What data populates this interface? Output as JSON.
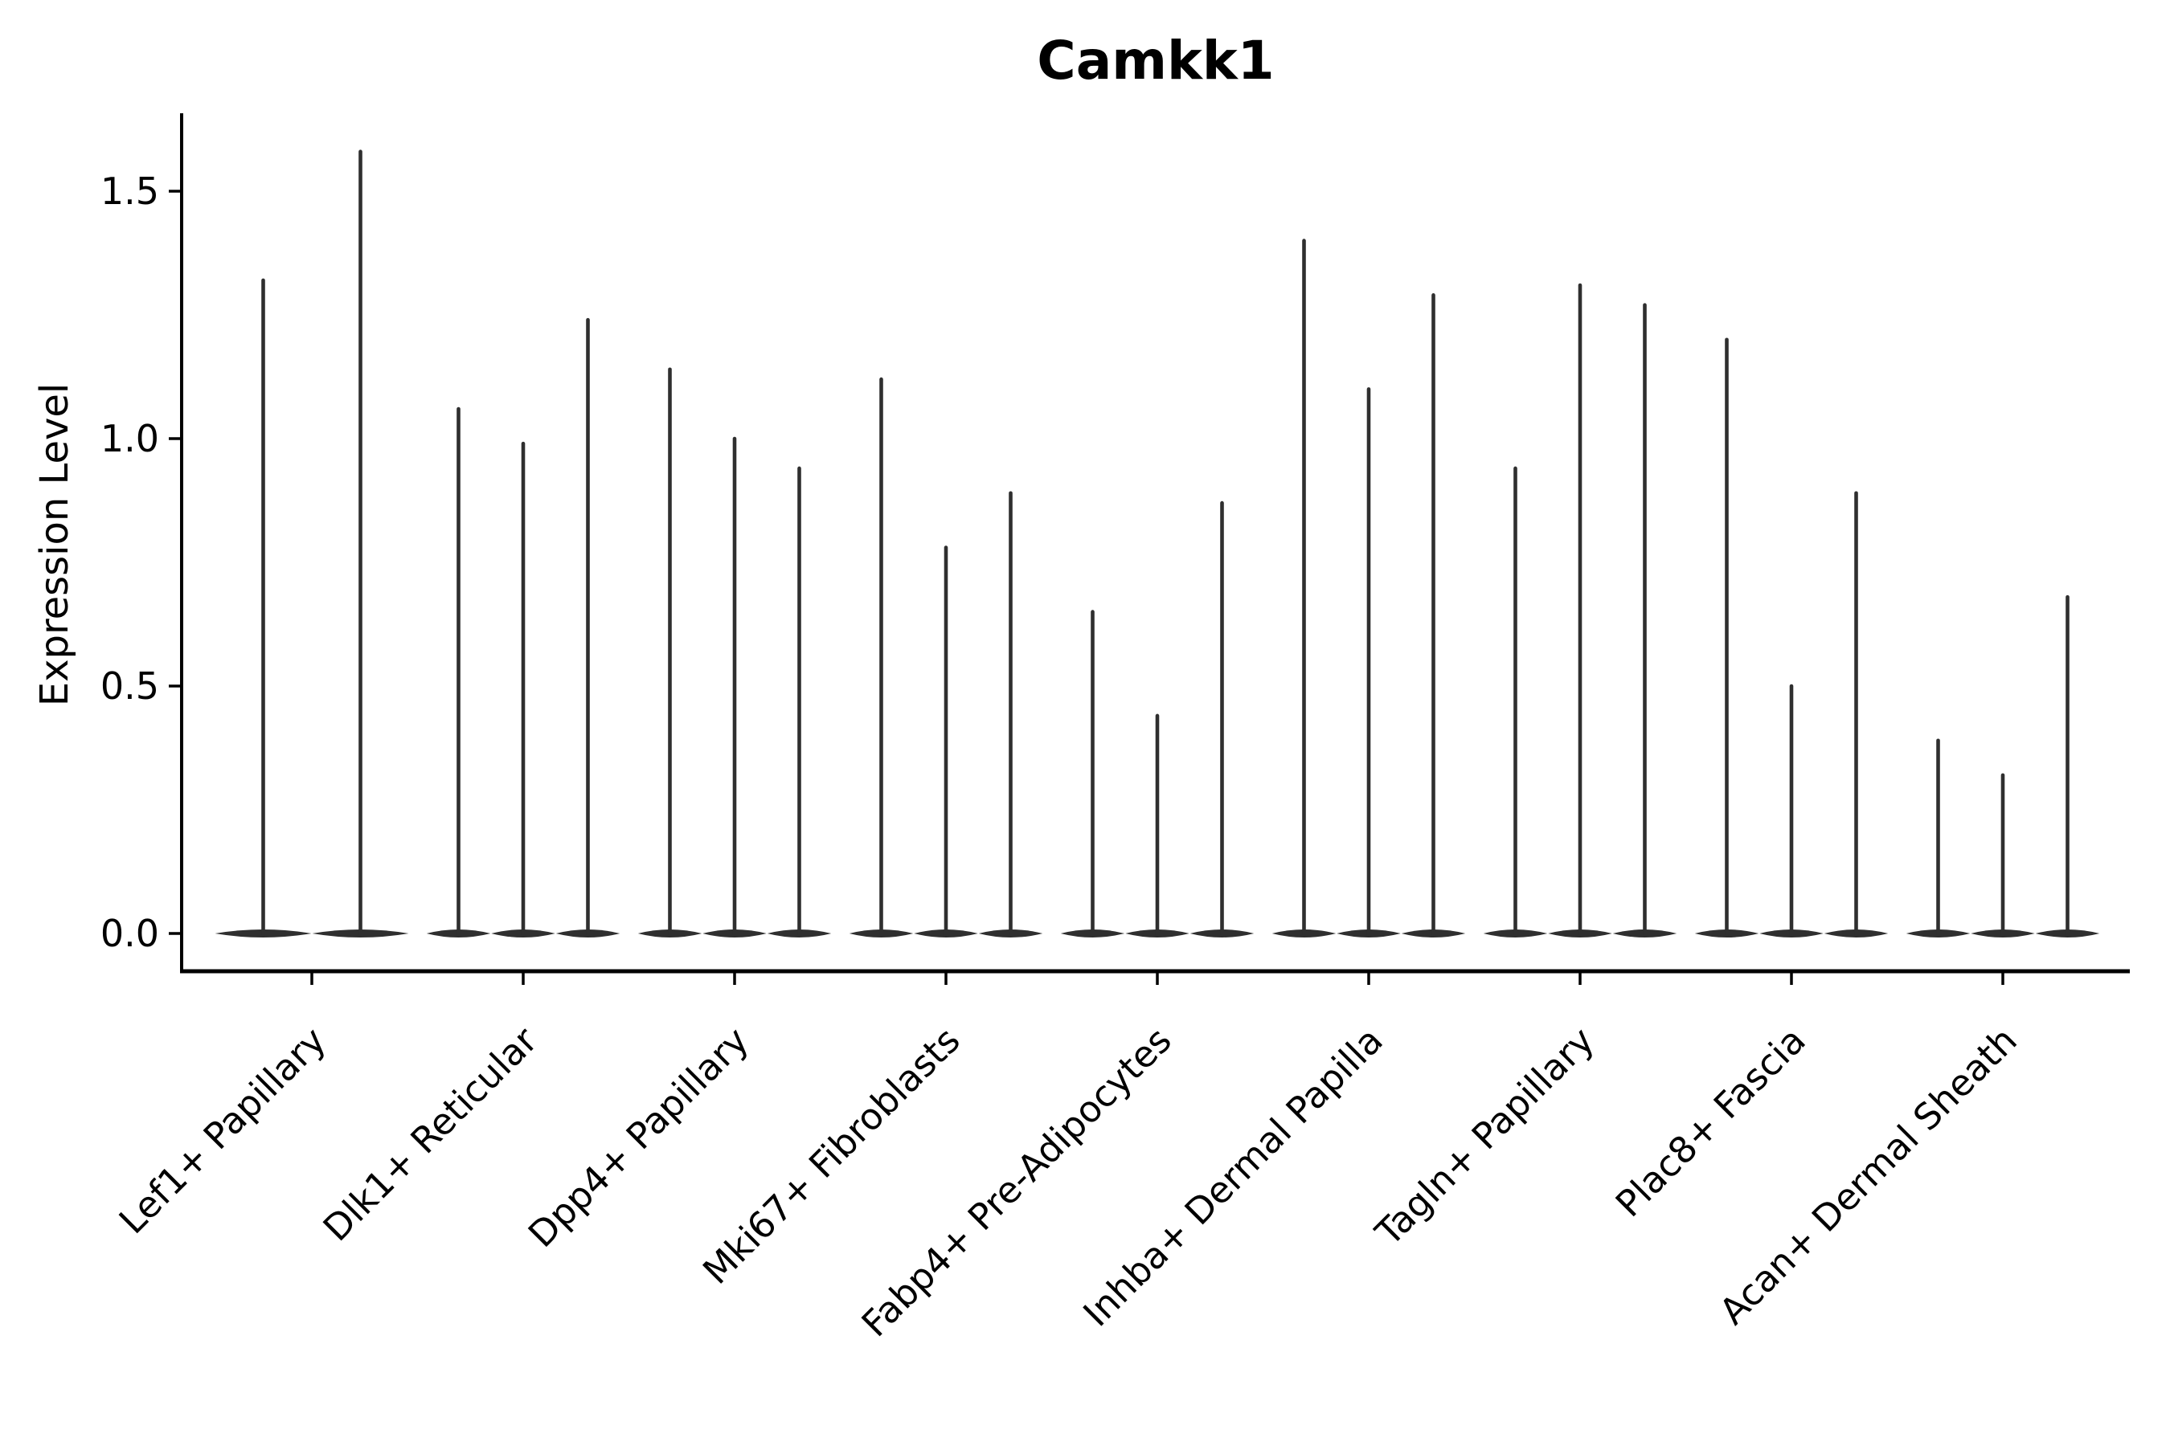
{
  "chart_data": {
    "type": "violin",
    "title": "Camkk1",
    "xlabel": "",
    "ylabel": "Expression Level",
    "ylim": [
      -0.08,
      1.66
    ],
    "yticks": [
      0.0,
      0.5,
      1.0,
      1.5
    ],
    "grid": false,
    "legend": null,
    "categories": [
      "Lef1+ Papillary",
      "Dlk1+ Reticular",
      "Dpp4+ Papillary",
      "Mki67+ Fibroblasts",
      "Fabp4+ Pre-Adipocytes",
      "Inhba+ Dermal Papilla",
      "Tagln+ Papillary",
      "Plac8+ Fascia",
      "Acan+ Dermal Sheath"
    ],
    "groups": [
      {
        "label": "Lef1+ Papillary",
        "violin_maxima": [
          1.32,
          1.58
        ]
      },
      {
        "label": "Dlk1+ Reticular",
        "violin_maxima": [
          1.06,
          0.99,
          1.24
        ]
      },
      {
        "label": "Dpp4+ Papillary",
        "violin_maxima": [
          1.14,
          1.0,
          0.94
        ]
      },
      {
        "label": "Mki67+ Fibroblasts",
        "violin_maxima": [
          1.12,
          0.78,
          0.89
        ]
      },
      {
        "label": "Fabp4+ Pre-Adipocytes",
        "violin_maxima": [
          0.65,
          0.44,
          0.87
        ]
      },
      {
        "label": "Inhba+ Dermal Papilla",
        "violin_maxima": [
          1.4,
          1.1,
          1.29
        ]
      },
      {
        "label": "Tagln+ Papillary",
        "violin_maxima": [
          0.94,
          1.31,
          1.27
        ]
      },
      {
        "label": "Plac8+ Fascia",
        "violin_maxima": [
          1.2,
          0.5,
          0.89
        ]
      },
      {
        "label": "Acan+ Dermal Sheath",
        "violin_maxima": [
          0.39,
          0.32,
          0.68
        ]
      }
    ],
    "violins_baseline_value": 0.0,
    "colors": {
      "violin": "#2f2f2f",
      "axis": "#000000",
      "text": "#000000",
      "background": "#ffffff"
    }
  }
}
